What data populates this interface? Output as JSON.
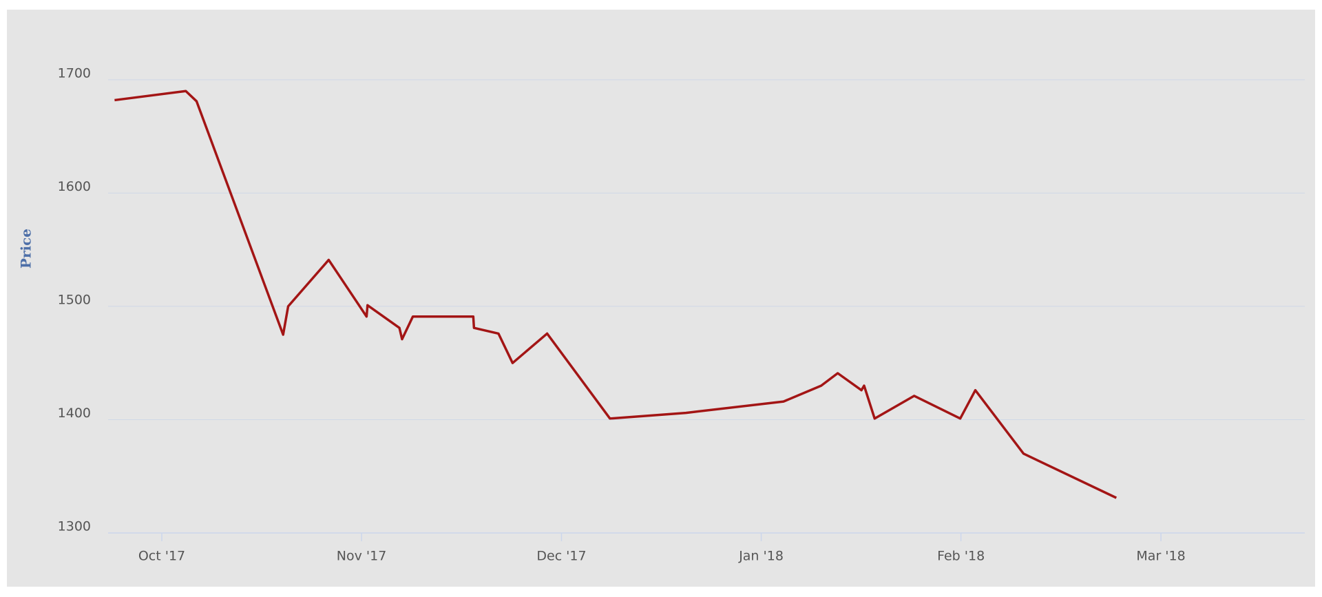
{
  "chart_data": {
    "type": "line",
    "y_label": "Price",
    "x": [
      2017.7303,
      2017.76,
      2017.7645,
      2017.8006,
      2017.8027,
      2017.8196,
      2017.8354,
      2017.8358,
      2017.8491,
      2017.8502,
      2017.8547,
      2017.8799,
      2017.8802,
      2017.8904,
      2017.8963,
      2017.9107,
      2017.9369,
      2017.9686,
      2018.0093,
      2018.025,
      2018.0319,
      2018.0418,
      2018.0429,
      2018.0473,
      2018.0638,
      2018.083,
      2018.0893,
      2018.1094,
      2018.1481
    ],
    "series": [
      {
        "color": "#a31515",
        "values": [
          1682,
          1690,
          1681,
          1475,
          1500,
          1541,
          1491,
          1501,
          1481,
          1471,
          1491,
          1491,
          1481,
          1476,
          1450,
          1476,
          1401,
          1406,
          1416,
          1430,
          1441,
          1426,
          1430,
          1401,
          1421,
          1401,
          1426,
          1370,
          1331
        ]
      }
    ],
    "xlim": [
      2017.7276,
      2018.2267
    ],
    "xticks": [
      {
        "value": 2017.75,
        "label": "Oct '17"
      },
      {
        "value": 2017.8333,
        "label": "Nov '17"
      },
      {
        "value": 2017.9167,
        "label": "Dec '17"
      },
      {
        "value": 2018.0,
        "label": "Jan '18"
      },
      {
        "value": 2018.0833,
        "label": "Feb '18"
      },
      {
        "value": 2018.1667,
        "label": "Mar '18"
      }
    ],
    "ylim": [
      1300,
      1740
    ],
    "yticks": [
      1300,
      1400,
      1500,
      1600,
      1700
    ],
    "grid": true
  }
}
